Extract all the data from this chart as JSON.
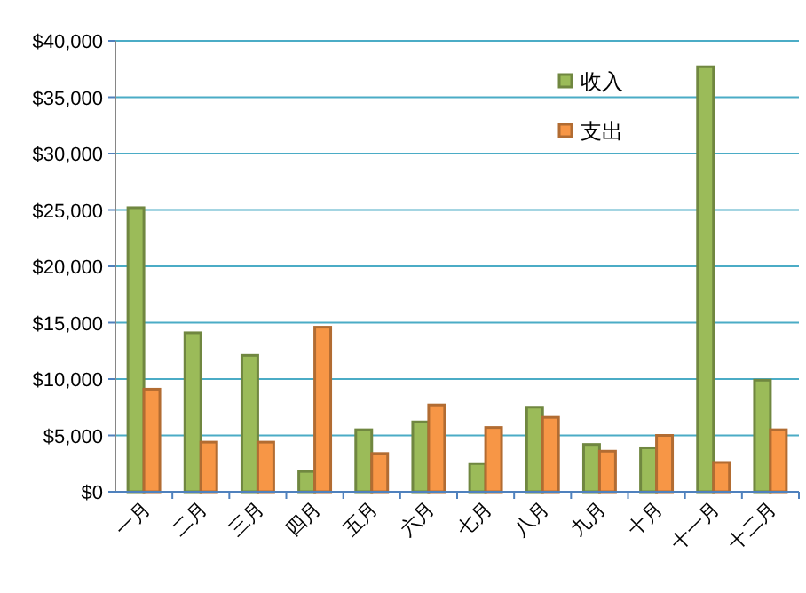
{
  "chart_data": {
    "type": "bar",
    "categories": [
      "一月",
      "二月",
      "三月",
      "四月",
      "五月",
      "六月",
      "七月",
      "八月",
      "九月",
      "十月",
      "十一月",
      "十二月"
    ],
    "series": [
      {
        "name": "收入",
        "color": "#9bbb59",
        "values": [
          25200,
          14100,
          12100,
          1800,
          5500,
          6200,
          2500,
          7500,
          4200,
          3900,
          37700,
          9900
        ]
      },
      {
        "name": "支出",
        "color": "#f79646",
        "values": [
          9100,
          4400,
          4400,
          14600,
          3400,
          7700,
          5700,
          6600,
          3600,
          5000,
          2600,
          5500
        ]
      }
    ],
    "ylim": [
      0,
      40000
    ],
    "yticks": [
      {
        "value": 0,
        "label": "$0"
      },
      {
        "value": 5000,
        "label": "$5,000"
      },
      {
        "value": 10000,
        "label": "$10,000"
      },
      {
        "value": 15000,
        "label": "$15,000"
      },
      {
        "value": 20000,
        "label": "$20,000"
      },
      {
        "value": 25000,
        "label": "$25,000"
      },
      {
        "value": 30000,
        "label": "$30,000"
      },
      {
        "value": 35000,
        "label": "$35,000"
      },
      {
        "value": 40000,
        "label": "$40,000"
      }
    ],
    "grid": "y",
    "legend": "top right"
  }
}
